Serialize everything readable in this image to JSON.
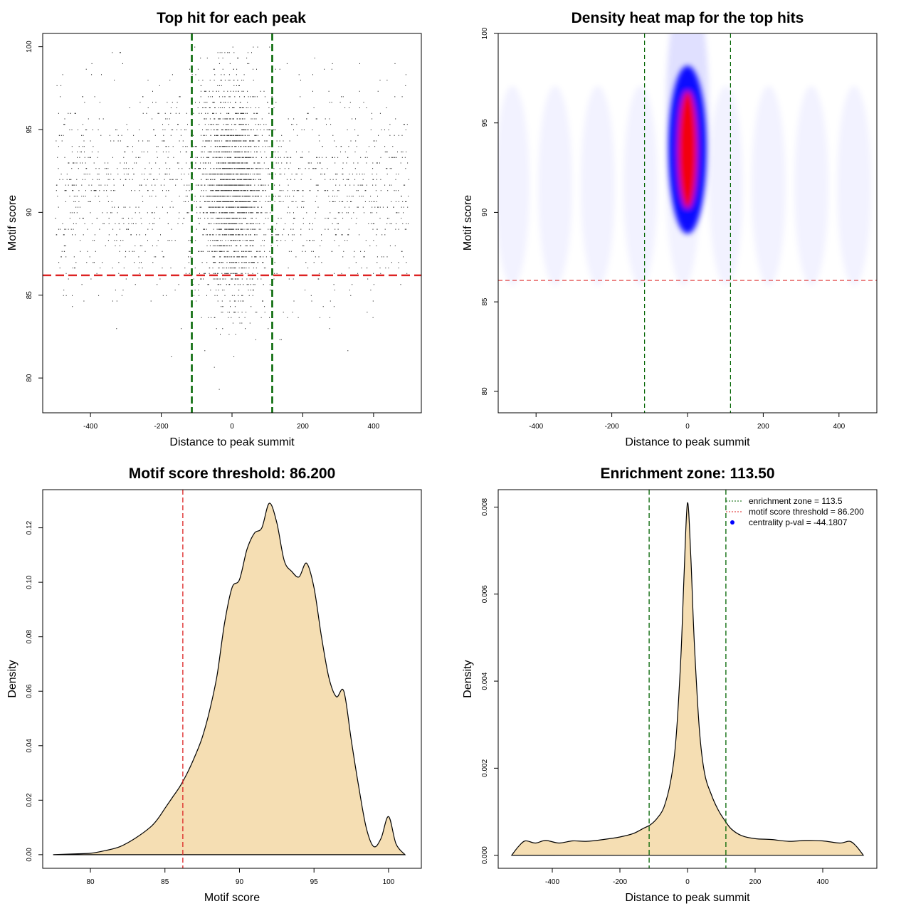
{
  "chart_data": [
    {
      "id": "scatter",
      "type": "scatter",
      "title": "Top hit for each peak",
      "xlabel": "Distance to peak summit",
      "ylabel": "Motif score",
      "xlim": [
        -535,
        535
      ],
      "ylim": [
        77.9,
        100.8
      ],
      "xticks": [
        -400,
        -200,
        0,
        200,
        400
      ],
      "xtick_labels": [
        "-400",
        "-200",
        "0",
        "200",
        "400"
      ],
      "yticks": [
        80,
        85,
        90,
        95,
        100
      ],
      "ytick_labels": [
        "80",
        "85",
        "90",
        "95",
        "100"
      ],
      "point_color": "#000000",
      "points_description_note_free": true,
      "distribution": {
        "n_points": 9000,
        "x_range": [
          -500,
          500
        ],
        "y_range": [
          78.8,
          100
        ],
        "central_sd": 45,
        "central_fraction": 0.55,
        "y_mean": 91.3,
        "y_sd": 3.2
      },
      "threshold_y": 86.2,
      "threshold_color": "#dd2222",
      "zone_x": [
        -113.5,
        113.5
      ],
      "zone_color": "#006400",
      "grid": false
    },
    {
      "id": "heatmap",
      "type": "heatmap",
      "title": "Density heat map for the top hits",
      "xlabel": "Distance to peak summit",
      "ylabel": "Motif score",
      "xlim": [
        -500,
        500
      ],
      "ylim": [
        78.8,
        100
      ],
      "xticks": [
        -400,
        -200,
        0,
        200,
        400
      ],
      "xtick_labels": [
        "-400",
        "-200",
        "0",
        "200",
        "400"
      ],
      "yticks": [
        80,
        85,
        90,
        95,
        100
      ],
      "ytick_labels": [
        "80",
        "85",
        "90",
        "95",
        "100"
      ],
      "colors": [
        "#ffffff",
        "#0000ff",
        "#ff0000"
      ],
      "peak_center": [
        0,
        93.5
      ],
      "threshold_y": 86.2,
      "threshold_color": "#dd2222",
      "zone_x": [
        -113.5,
        113.5
      ],
      "zone_color": "#006400",
      "grid": false
    },
    {
      "id": "score_density",
      "type": "area",
      "title": "Motif score threshold: 86.200",
      "xlabel": "Motif score",
      "ylabel": "Density",
      "xlim": [
        76.8,
        102.2
      ],
      "ylim": [
        -0.005,
        0.134
      ],
      "xticks": [
        80,
        85,
        90,
        95,
        100
      ],
      "xtick_labels": [
        "80",
        "85",
        "90",
        "95",
        "100"
      ],
      "yticks": [
        0.0,
        0.02,
        0.04,
        0.06,
        0.08,
        0.1,
        0.12
      ],
      "ytick_labels": [
        "0.00",
        "0.02",
        "0.04",
        "0.06",
        "0.08",
        "0.10",
        "0.12"
      ],
      "fill_color": "#f5deb3",
      "x": [
        77.5,
        79,
        80,
        81,
        82,
        83,
        84,
        84.5,
        85,
        85.5,
        86,
        86.5,
        87,
        87.5,
        88,
        88.5,
        89,
        89.5,
        90,
        90.5,
        91,
        91.5,
        92,
        92.5,
        93,
        93.5,
        94,
        94.5,
        95,
        95.5,
        96,
        96.5,
        97,
        97.5,
        98,
        98.5,
        99,
        99.5,
        100,
        100.5,
        101.1
      ],
      "y": [
        0.0,
        0.0003,
        0.0005,
        0.0015,
        0.003,
        0.006,
        0.01,
        0.013,
        0.017,
        0.021,
        0.025,
        0.03,
        0.036,
        0.043,
        0.053,
        0.066,
        0.085,
        0.098,
        0.101,
        0.112,
        0.118,
        0.12,
        0.129,
        0.122,
        0.108,
        0.104,
        0.102,
        0.107,
        0.098,
        0.08,
        0.065,
        0.058,
        0.06,
        0.042,
        0.025,
        0.01,
        0.003,
        0.006,
        0.014,
        0.004,
        0.0
      ],
      "threshold_x": 86.2,
      "threshold_color": "#dd2222",
      "grid": false
    },
    {
      "id": "distance_density",
      "type": "area",
      "title": "Enrichment zone: 113.50",
      "xlabel": "Distance to peak summit",
      "ylabel": "Density",
      "xlim": [
        -560,
        560
      ],
      "ylim": [
        -0.0003,
        0.0084
      ],
      "xticks": [
        -400,
        -200,
        0,
        200,
        400
      ],
      "xtick_labels": [
        "-400",
        "-200",
        "0",
        "200",
        "400"
      ],
      "yticks": [
        0.0,
        0.002,
        0.004,
        0.006,
        0.008
      ],
      "ytick_labels": [
        "0.000",
        "0.002",
        "0.004",
        "0.006",
        "0.008"
      ],
      "fill_color": "#f5deb3",
      "x": [
        -520,
        -500,
        -480,
        -450,
        -420,
        -380,
        -340,
        -300,
        -250,
        -200,
        -160,
        -130,
        -110,
        -90,
        -70,
        -50,
        -35,
        -20,
        -10,
        0,
        10,
        20,
        35,
        50,
        70,
        90,
        110,
        130,
        160,
        200,
        250,
        300,
        350,
        400,
        450,
        480,
        500,
        520
      ],
      "y": [
        0.0,
        0.0002,
        0.00033,
        0.00028,
        0.00034,
        0.00028,
        0.00033,
        0.00032,
        0.00036,
        0.00042,
        0.0005,
        0.00062,
        0.0007,
        0.00085,
        0.0011,
        0.0017,
        0.0026,
        0.0045,
        0.0065,
        0.0081,
        0.0068,
        0.0049,
        0.0029,
        0.0019,
        0.0014,
        0.00105,
        0.0008,
        0.0006,
        0.00045,
        0.00038,
        0.00036,
        0.00032,
        0.00034,
        0.00033,
        0.00028,
        0.00032,
        0.0002,
        0.0
      ],
      "zone_x": [
        -113.5,
        113.5
      ],
      "zone_color": "#006400",
      "legend": {
        "position": "top-right",
        "entries": [
          {
            "label": "enrichment zone = 113.5",
            "color": "#006400",
            "style": "dotted"
          },
          {
            "label": "motif score threshold = 86.200",
            "color": "#dd2222",
            "style": "dotted"
          },
          {
            "label": "centrality p-val = -44.1807",
            "color": "#0000ff",
            "style": "point"
          }
        ]
      },
      "grid": false
    }
  ]
}
